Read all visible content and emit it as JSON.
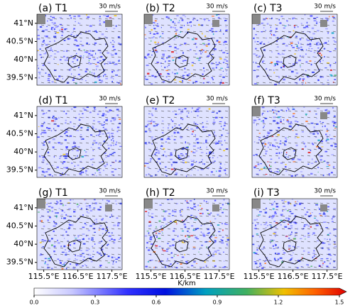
{
  "panels": [
    {
      "label": "(a) T1",
      "scale": "30 m/s"
    },
    {
      "label": "(b) T2",
      "scale": "30 m/s"
    },
    {
      "label": "(c) T3",
      "scale": "30 m/s"
    },
    {
      "label": "(d) T1",
      "scale": "30 m/s"
    },
    {
      "label": "(e) T2",
      "scale": "30 m/s"
    },
    {
      "label": "(f) T3",
      "scale": "30 m/s"
    },
    {
      "label": "(g) T1",
      "scale": "30 m/s"
    },
    {
      "label": "(h) T2",
      "scale": "30 m/s"
    },
    {
      "label": "(i) T3",
      "scale": "30 m/s"
    }
  ],
  "lat_lim": [
    39.3,
    41.25
  ],
  "lat_ticks": [
    {
      "value": 41,
      "label": "41°N"
    },
    {
      "value": 40.5,
      "label": "40.5°N"
    },
    {
      "value": 40,
      "label": "40°N"
    },
    {
      "value": 39.5,
      "label": "39.5°N"
    }
  ],
  "lon_lim": [
    115.3,
    117.8
  ],
  "lon_ticks": [
    {
      "value": 115.5,
      "label": "115.5°E"
    },
    {
      "value": 116.5,
      "label": "116.5°E"
    },
    {
      "value": 117.5,
      "label": "117.5°E"
    }
  ],
  "colorbar": {
    "label": "K/km",
    "lim": [
      0,
      1.5
    ],
    "ticks": [
      {
        "value": 0,
        "label": "0.0"
      },
      {
        "value": 0.3,
        "label": "0.3"
      },
      {
        "value": 0.6,
        "label": "0.6"
      },
      {
        "value": 0.9,
        "label": "0.9"
      },
      {
        "value": 1.2,
        "label": "1.2"
      },
      {
        "value": 1.5,
        "label": "1.5"
      }
    ]
  }
}
